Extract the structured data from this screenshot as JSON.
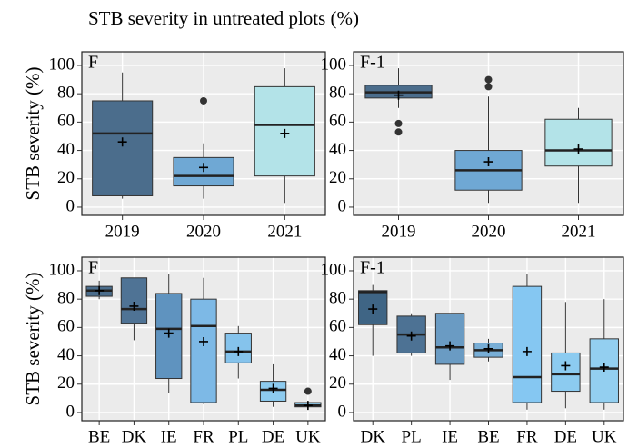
{
  "chart_data": [
    {
      "type": "box",
      "title": "STB severity in untreated plots (%)",
      "ylabel": "STB severity (%)",
      "panel_label": "F",
      "categories": [
        "2019",
        "2020",
        "2021"
      ],
      "colors": [
        "#4b6d8c",
        "#6fa8d4",
        "#b3e3e8"
      ],
      "ylim": [
        -5.8,
        109.6
      ],
      "yticks": [
        0,
        20,
        40,
        60,
        80,
        100
      ],
      "grid": true,
      "boxes": [
        {
          "whislo": 6,
          "q1": 8,
          "med": 52,
          "q3": 75,
          "whishi": 95,
          "mean": 46
        },
        {
          "whislo": 6,
          "q1": 15,
          "med": 22,
          "q3": 35,
          "whishi": 45,
          "mean": 28,
          "fliers": [
            75
          ]
        },
        {
          "whislo": 3,
          "q1": 22,
          "med": 58,
          "q3": 85,
          "whishi": 98,
          "mean": 52
        }
      ]
    },
    {
      "type": "box",
      "panel_label": "F-1",
      "categories": [
        "2019",
        "2020",
        "2021"
      ],
      "colors": [
        "#4b6d8c",
        "#6fa8d4",
        "#b3e3e8"
      ],
      "ylim": [
        -5.8,
        109.6
      ],
      "yticks": [
        0,
        20,
        40,
        60,
        80,
        100
      ],
      "grid": true,
      "boxes": [
        {
          "whislo": 70,
          "q1": 77,
          "med": 81,
          "q3": 86,
          "whishi": 98,
          "mean": 79,
          "fliers": [
            59,
            53
          ]
        },
        {
          "whislo": 3,
          "q1": 12,
          "med": 26,
          "q3": 40,
          "whishi": 78,
          "mean": 32,
          "fliers": [
            90,
            85
          ]
        },
        {
          "whislo": 3,
          "q1": 29,
          "med": 40,
          "q3": 62,
          "whishi": 70,
          "mean": 41
        }
      ]
    },
    {
      "type": "box",
      "ylabel": "STB severity (%)",
      "panel_label": "F",
      "categories": [
        "BE",
        "DK",
        "IE",
        "FR",
        "PL",
        "DE",
        "UK"
      ],
      "colors": [
        "#4b6d8c",
        "#4f7395",
        "#5f93bf",
        "#7db9e6",
        "#85c3ec",
        "#8dcbef",
        "#93cff0"
      ],
      "ylim": [
        -5.8,
        109.6
      ],
      "yticks": [
        0,
        20,
        40,
        60,
        80,
        100
      ],
      "grid": true,
      "boxes": [
        {
          "whislo": 80,
          "q1": 82,
          "med": 86,
          "q3": 89,
          "whishi": 93,
          "mean": 86
        },
        {
          "whislo": 51,
          "q1": 63,
          "med": 73,
          "q3": 95,
          "whishi": 95,
          "mean": 75
        },
        {
          "whislo": 14,
          "q1": 24,
          "med": 59,
          "q3": 84,
          "whishi": 98,
          "mean": 56
        },
        {
          "whislo": 6,
          "q1": 7,
          "med": 61,
          "q3": 80,
          "whishi": 95,
          "mean": 50
        },
        {
          "whislo": 24,
          "q1": 35,
          "med": 43,
          "q3": 56,
          "whishi": 61,
          "mean": 43
        },
        {
          "whislo": 4,
          "q1": 8,
          "med": 16,
          "q3": 22,
          "whishi": 34,
          "mean": 17
        },
        {
          "whislo": 3,
          "q1": 4,
          "med": 5,
          "q3": 7,
          "whishi": 8,
          "mean": 5,
          "fliers": [
            15
          ]
        }
      ]
    },
    {
      "type": "box",
      "panel_label": "F-1",
      "categories": [
        "DK",
        "PL",
        "IE",
        "BE",
        "FR",
        "DE",
        "UK"
      ],
      "colors": [
        "#3f6585",
        "#4d7294",
        "#6a9bc3",
        "#78aed6",
        "#85c7f2",
        "#8ccbf0",
        "#93cff0"
      ],
      "ylim": [
        -5.8,
        109.6
      ],
      "yticks": [
        0,
        20,
        40,
        60,
        80,
        100
      ],
      "grid": true,
      "boxes": [
        {
          "whislo": 40,
          "q1": 62,
          "med": 85,
          "q3": 86,
          "whishi": 90,
          "mean": 73
        },
        {
          "whislo": 40,
          "q1": 42,
          "med": 55,
          "q3": 68,
          "whishi": 70,
          "mean": 54
        },
        {
          "whislo": 23,
          "q1": 34,
          "med": 46,
          "q3": 70,
          "whishi": 70,
          "mean": 47
        },
        {
          "whislo": 36,
          "q1": 39,
          "med": 44,
          "q3": 49,
          "whishi": 52,
          "mean": 45
        },
        {
          "whislo": 2,
          "q1": 7,
          "med": 25,
          "q3": 89,
          "whishi": 98,
          "mean": 43
        },
        {
          "whislo": 3,
          "q1": 15,
          "med": 27,
          "q3": 42,
          "whishi": 78,
          "mean": 33
        },
        {
          "whislo": 2,
          "q1": 7,
          "med": 31,
          "q3": 52,
          "whishi": 80,
          "mean": 32
        }
      ]
    }
  ]
}
